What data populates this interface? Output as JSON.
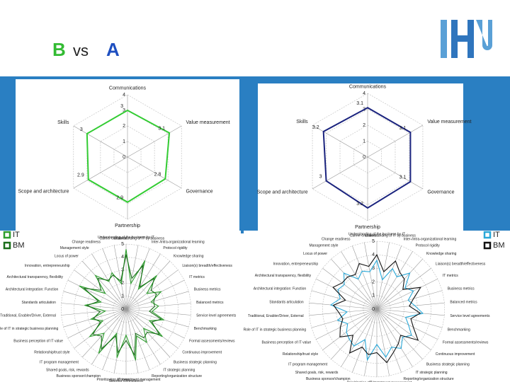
{
  "title": {
    "parts": [
      "B",
      "vs",
      "A"
    ]
  },
  "chart_data": [
    {
      "type": "radar",
      "categories": [
        "Communications",
        "Value measurement",
        "Governance",
        "Partnership",
        "Scope and architecture",
        "Skills"
      ],
      "series": [
        {
          "name": "B",
          "color": "#33cc33",
          "values": [
            3,
            3.1,
            2.8,
            2.9,
            2.9,
            3
          ]
        }
      ],
      "rlim": [
        0,
        4
      ],
      "rticks": [
        0,
        1,
        2,
        3,
        4
      ],
      "grid": true,
      "data_labels": true
    },
    {
      "type": "radar",
      "categories": [
        "Communications",
        "Value measurement",
        "Governance",
        "Partnership",
        "Scope and architecture",
        "Skills"
      ],
      "series": [
        {
          "name": "A",
          "color": "#1a237e",
          "values": [
            3.1,
            3.1,
            3.1,
            3.2,
            3,
            3.2
          ]
        }
      ],
      "rlim": [
        0,
        4
      ],
      "rticks": [
        0,
        1,
        2,
        3,
        4
      ],
      "grid": true,
      "data_labels": true
    },
    {
      "type": "radar",
      "categories": [
        "Understanding of the business by IT",
        "Understanding of IT by business",
        "Inter-/intra-organizational learning",
        "Protocol rigidity",
        "Knowledge sharing",
        "Liaison(s) breadth/effectiveness",
        "IT metrics",
        "Business metrics",
        "Balanced metrics",
        "Service level agreements",
        "Benchmarking",
        "Formal assessments/reviews",
        "Continuous improvement",
        "Business strategic planning",
        "IT strategic planning",
        "Reporting/organization structure",
        "IT investment management",
        "Steering committee(s)",
        "Prioritization process",
        "Business sponsor/champion",
        "Shared goals, risk, rewards",
        "IT program management",
        "Relationship/trust style",
        "Business perception of IT value",
        "Role of IT in strategic business planning",
        "Traditional, Enabler/Driver, External",
        "Standards articulation",
        "Architectural integration: Function",
        "Architectural transparency, flexibility",
        "Innovation, entrepreneurship",
        "Locus of power",
        "Management style",
        "Change readiness",
        "Career crossover"
      ],
      "series": [
        {
          "name": "IT",
          "color": "#2e9e2e",
          "values": [
            4.6,
            2,
            4,
            1.8,
            3.5,
            2,
            3,
            2,
            2.5,
            2,
            3,
            2,
            3.5,
            2,
            3,
            2.2,
            4,
            2,
            3.8,
            2,
            4,
            2.5,
            3.5,
            2,
            2.8,
            1.6,
            3.2,
            2,
            4,
            2,
            3.5,
            2.5,
            3,
            2
          ]
        },
        {
          "name": "BM",
          "color": "#1b6e1b",
          "values": [
            4.2,
            2.4,
            3.6,
            2,
            3.2,
            2.4,
            2.6,
            2.2,
            2.2,
            1.8,
            2.8,
            2.2,
            3.2,
            2.4,
            2.6,
            2,
            3.6,
            2.4,
            3.4,
            2.2,
            3.6,
            2.8,
            3.2,
            2.2,
            2.6,
            2,
            3,
            2.2,
            3.6,
            2.4,
            3.2,
            2.6,
            2.8,
            2.2
          ]
        }
      ],
      "rlim": [
        0,
        5
      ],
      "rticks": [
        0,
        1,
        2,
        3,
        4,
        5
      ],
      "grid": true,
      "legend": "left"
    },
    {
      "type": "radar",
      "categories": [
        "Understanding of the business by IT",
        "Understanding of IT by business",
        "Inter-/intra-organizational learning",
        "Protocol rigidity",
        "Knowledge sharing",
        "Liaison(s) breadth/effectiveness",
        "IT metrics",
        "Business metrics",
        "Balanced metrics",
        "Service level agreements",
        "Benchmarking",
        "Formal assessments/reviews",
        "Continuous improvement",
        "Business strategic planning",
        "IT strategic planning",
        "Reporting/organization structure",
        "IT investment management",
        "Steering committee(s)",
        "Prioritization process",
        "Business sponsor/champion",
        "Shared goals, risk, rewards",
        "IT program management",
        "Relationship/trust style",
        "Business perception of IT value",
        "Role of IT in strategic business planning",
        "Traditional, Enabler/Driver, External",
        "Standards articulation",
        "Architectural integration: Function",
        "Architectural transparency, flexibility",
        "Innovation, entrepreneurship",
        "Locus of power",
        "Management style",
        "Change readiness",
        "Career crossover"
      ],
      "series": [
        {
          "name": "IT",
          "color": "#29a8d8",
          "values": [
            3.6,
            2.2,
            3.2,
            2.8,
            3.6,
            2.6,
            3,
            2.4,
            2.8,
            3.4,
            2.2,
            2.6,
            3.2,
            2.8,
            3.4,
            3,
            3.6,
            2.6,
            3.8,
            2.4,
            3.2,
            3,
            2.8,
            2.4,
            3,
            2.2,
            3.4,
            2.8,
            3.2,
            3,
            3.6,
            2.6,
            3,
            2.8
          ]
        },
        {
          "name": "BM",
          "color": "#111111",
          "values": [
            4,
            2.8,
            3.8,
            3.2,
            3,
            2.4,
            3.6,
            2.8,
            2.4,
            3.2,
            2.6,
            3,
            3.8,
            2.6,
            3,
            3.4,
            4,
            3.2,
            3.4,
            3,
            3.8,
            2.6,
            3.4,
            3,
            2.6,
            2.8,
            3.2,
            2.4,
            3.6,
            3.2,
            3.2,
            3,
            3.6,
            3.2
          ]
        }
      ],
      "rlim": [
        0,
        5
      ],
      "rticks": [
        0,
        1,
        2,
        3,
        4,
        5
      ],
      "grid": true,
      "legend": "right"
    }
  ]
}
